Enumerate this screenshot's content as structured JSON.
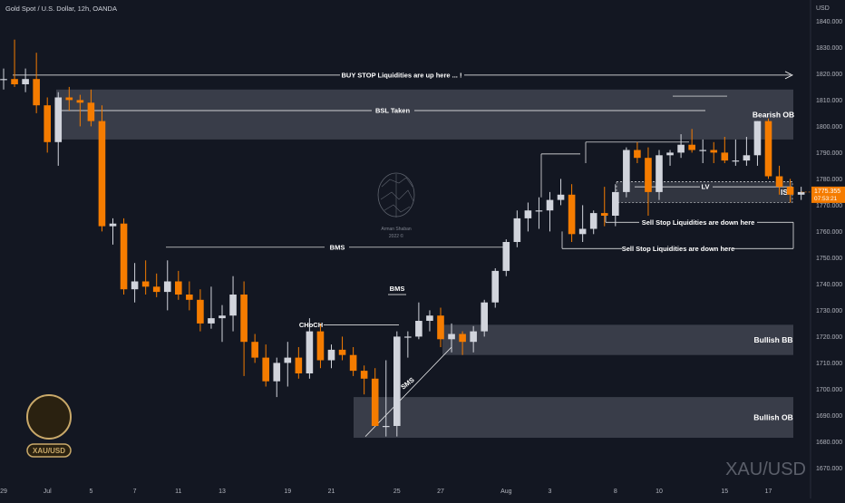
{
  "header": {
    "symbol_line": "Gold Spot / U.S. Dollar, 12h, OANDA",
    "currency": "USD"
  },
  "price_tag": {
    "price": "1775.355",
    "countdown": "07:53:21"
  },
  "watermark": {
    "symbol": "XAU/USD",
    "logo_name": "Arman Shaban",
    "logo_year": "2022 ©"
  },
  "badge": {
    "text": "XAU/USD",
    "gold": "#c9a96a",
    "dark": "#2a2110"
  },
  "colors": {
    "background": "#131722",
    "bull": "#d1d4dc",
    "bear": "#f57c00",
    "zone": "#4a4e5a",
    "line": "#ffffff",
    "price_tag": "#f57c00"
  },
  "chart_data": {
    "type": "candlestick",
    "title": "Gold Spot / U.S. Dollar, 12h, OANDA",
    "ylim": [
      1666,
      1846
    ],
    "y_ticks": [
      1670,
      1680,
      1690,
      1700,
      1710,
      1720,
      1730,
      1740,
      1750,
      1760,
      1770,
      1780,
      1790,
      1800,
      1810,
      1820,
      1830,
      1840
    ],
    "y_tick_labels": [
      "1670.000",
      "1680.000",
      "1690.000",
      "1700.000",
      "1710.000",
      "1720.000",
      "1730.000",
      "1740.000",
      "1750.000",
      "1760.000",
      "1770.000",
      "1780.000",
      "1790.000",
      "1800.000",
      "1810.000",
      "1820.000",
      "1830.000",
      "1840.000"
    ],
    "x_ticks": [
      {
        "label": "29",
        "i": 0
      },
      {
        "label": "Jul",
        "i": 4
      },
      {
        "label": "5",
        "i": 8
      },
      {
        "label": "7",
        "i": 12
      },
      {
        "label": "11",
        "i": 16
      },
      {
        "label": "13",
        "i": 20
      },
      {
        "label": "19",
        "i": 26
      },
      {
        "label": "21",
        "i": 30
      },
      {
        "label": "25",
        "i": 36
      },
      {
        "label": "27",
        "i": 40
      },
      {
        "label": "Aug",
        "i": 46
      },
      {
        "label": "3",
        "i": 50
      },
      {
        "label": "8",
        "i": 56
      },
      {
        "label": "10",
        "i": 60
      },
      {
        "label": "15",
        "i": 66
      },
      {
        "label": "17",
        "i": 70
      }
    ],
    "candles": [
      {
        "o": 1818,
        "h": 1822,
        "l": 1814,
        "c": 1818
      },
      {
        "o": 1818,
        "h": 1833,
        "l": 1815,
        "c": 1816
      },
      {
        "o": 1816,
        "h": 1822,
        "l": 1813,
        "c": 1818
      },
      {
        "o": 1818,
        "h": 1828,
        "l": 1805,
        "c": 1808
      },
      {
        "o": 1808,
        "h": 1811,
        "l": 1790,
        "c": 1794
      },
      {
        "o": 1794,
        "h": 1813,
        "l": 1785,
        "c": 1811
      },
      {
        "o": 1811,
        "h": 1815,
        "l": 1806,
        "c": 1810
      },
      {
        "o": 1810,
        "h": 1812,
        "l": 1800,
        "c": 1809
      },
      {
        "o": 1809,
        "h": 1814,
        "l": 1800,
        "c": 1802
      },
      {
        "o": 1802,
        "h": 1808,
        "l": 1760,
        "c": 1762
      },
      {
        "o": 1762,
        "h": 1765,
        "l": 1755,
        "c": 1763
      },
      {
        "o": 1763,
        "h": 1765,
        "l": 1736,
        "c": 1738
      },
      {
        "o": 1738,
        "h": 1748,
        "l": 1733,
        "c": 1741
      },
      {
        "o": 1741,
        "h": 1749,
        "l": 1736,
        "c": 1739
      },
      {
        "o": 1739,
        "h": 1744,
        "l": 1735,
        "c": 1737
      },
      {
        "o": 1737,
        "h": 1749,
        "l": 1730,
        "c": 1741
      },
      {
        "o": 1741,
        "h": 1745,
        "l": 1734,
        "c": 1736
      },
      {
        "o": 1736,
        "h": 1741,
        "l": 1730,
        "c": 1734
      },
      {
        "o": 1734,
        "h": 1738,
        "l": 1722,
        "c": 1725
      },
      {
        "o": 1725,
        "h": 1739,
        "l": 1723,
        "c": 1727
      },
      {
        "o": 1727,
        "h": 1732,
        "l": 1718,
        "c": 1728
      },
      {
        "o": 1728,
        "h": 1743,
        "l": 1722,
        "c": 1736
      },
      {
        "o": 1736,
        "h": 1741,
        "l": 1705,
        "c": 1718
      },
      {
        "o": 1718,
        "h": 1721,
        "l": 1710,
        "c": 1712
      },
      {
        "o": 1712,
        "h": 1717,
        "l": 1701,
        "c": 1703
      },
      {
        "o": 1703,
        "h": 1712,
        "l": 1697,
        "c": 1710
      },
      {
        "o": 1710,
        "h": 1718,
        "l": 1701,
        "c": 1712
      },
      {
        "o": 1712,
        "h": 1716,
        "l": 1704,
        "c": 1706
      },
      {
        "o": 1706,
        "h": 1727,
        "l": 1704,
        "c": 1722
      },
      {
        "o": 1722,
        "h": 1725,
        "l": 1708,
        "c": 1711
      },
      {
        "o": 1711,
        "h": 1717,
        "l": 1708,
        "c": 1715
      },
      {
        "o": 1715,
        "h": 1720,
        "l": 1711,
        "c": 1713
      },
      {
        "o": 1713,
        "h": 1716,
        "l": 1705,
        "c": 1707
      },
      {
        "o": 1707,
        "h": 1709,
        "l": 1698,
        "c": 1704
      },
      {
        "o": 1704,
        "h": 1708,
        "l": 1686,
        "c": 1686
      },
      {
        "o": 1686,
        "h": 1711,
        "l": 1682,
        "c": 1686
      },
      {
        "o": 1686,
        "h": 1722,
        "l": 1682,
        "c": 1720
      },
      {
        "o": 1720,
        "h": 1722,
        "l": 1712,
        "c": 1720
      },
      {
        "o": 1720,
        "h": 1733,
        "l": 1719,
        "c": 1726
      },
      {
        "o": 1726,
        "h": 1730,
        "l": 1722,
        "c": 1728
      },
      {
        "o": 1728,
        "h": 1731,
        "l": 1716,
        "c": 1719
      },
      {
        "o": 1719,
        "h": 1725,
        "l": 1714,
        "c": 1721
      },
      {
        "o": 1721,
        "h": 1722,
        "l": 1713,
        "c": 1718
      },
      {
        "o": 1718,
        "h": 1724,
        "l": 1714,
        "c": 1722
      },
      {
        "o": 1722,
        "h": 1734,
        "l": 1720,
        "c": 1733
      },
      {
        "o": 1733,
        "h": 1746,
        "l": 1731,
        "c": 1745
      },
      {
        "o": 1745,
        "h": 1757,
        "l": 1743,
        "c": 1756
      },
      {
        "o": 1756,
        "h": 1768,
        "l": 1754,
        "c": 1765
      },
      {
        "o": 1765,
        "h": 1771,
        "l": 1760,
        "c": 1768
      },
      {
        "o": 1768,
        "h": 1773,
        "l": 1761,
        "c": 1768
      },
      {
        "o": 1768,
        "h": 1775,
        "l": 1760,
        "c": 1772
      },
      {
        "o": 1772,
        "h": 1780,
        "l": 1770,
        "c": 1774
      },
      {
        "o": 1774,
        "h": 1778,
        "l": 1756,
        "c": 1759
      },
      {
        "o": 1759,
        "h": 1770,
        "l": 1756,
        "c": 1761
      },
      {
        "o": 1761,
        "h": 1768,
        "l": 1759,
        "c": 1767
      },
      {
        "o": 1767,
        "h": 1777,
        "l": 1762,
        "c": 1766
      },
      {
        "o": 1766,
        "h": 1778,
        "l": 1762,
        "c": 1775
      },
      {
        "o": 1775,
        "h": 1792,
        "l": 1773,
        "c": 1791
      },
      {
        "o": 1791,
        "h": 1794,
        "l": 1786,
        "c": 1788
      },
      {
        "o": 1788,
        "h": 1792,
        "l": 1766,
        "c": 1775
      },
      {
        "o": 1775,
        "h": 1791,
        "l": 1772,
        "c": 1789
      },
      {
        "o": 1789,
        "h": 1791,
        "l": 1785,
        "c": 1790
      },
      {
        "o": 1790,
        "h": 1797,
        "l": 1788,
        "c": 1793
      },
      {
        "o": 1793,
        "h": 1799,
        "l": 1790,
        "c": 1791
      },
      {
        "o": 1791,
        "h": 1795,
        "l": 1786,
        "c": 1791
      },
      {
        "o": 1791,
        "h": 1794,
        "l": 1786,
        "c": 1790
      },
      {
        "o": 1790,
        "h": 1796,
        "l": 1786,
        "c": 1787
      },
      {
        "o": 1787,
        "h": 1795,
        "l": 1785,
        "c": 1787
      },
      {
        "o": 1787,
        "h": 1796,
        "l": 1785,
        "c": 1789
      },
      {
        "o": 1789,
        "h": 1802,
        "l": 1785,
        "c": 1802
      },
      {
        "o": 1802,
        "h": 1803,
        "l": 1780,
        "c": 1781
      },
      {
        "o": 1781,
        "h": 1785,
        "l": 1774,
        "c": 1777
      },
      {
        "o": 1777,
        "h": 1780,
        "l": 1771,
        "c": 1774
      },
      {
        "o": 1774,
        "h": 1777,
        "l": 1772,
        "c": 1775
      }
    ],
    "zones": [
      {
        "label": "Bearish OB",
        "top": 1814,
        "bottom": 1795
      },
      {
        "label": "Bullish BB",
        "top": 1724.5,
        "bottom": 1713
      },
      {
        "label": "Bullish OB",
        "top": 1697,
        "bottom": 1681.5
      },
      {
        "label": "IS",
        "top": 1779,
        "bottom": 1771
      }
    ],
    "annotations": {
      "buy_stop": "BUY STOP Liquidities are up here ... !",
      "bsl_taken": "BSL Taken",
      "bms_1": "BMS",
      "bms_2": "BMS",
      "choch": "CHoCH",
      "sms": "SMS",
      "lv": "LV",
      "sell_stop_1": "Sell Stop Liquidities are down here",
      "sell_stop_2": "Sell Stop Liquidities are down here"
    }
  }
}
